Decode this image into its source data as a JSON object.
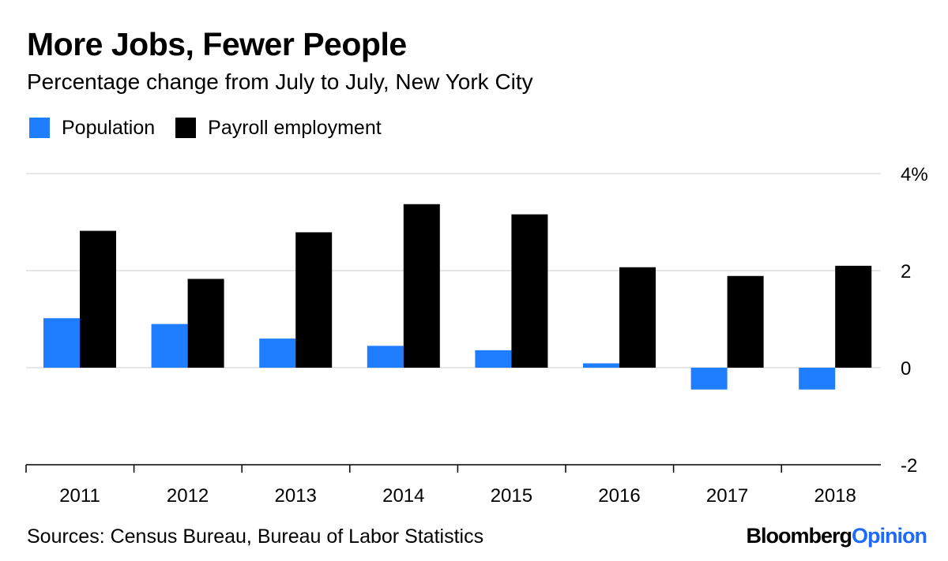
{
  "title": "More Jobs, Fewer People",
  "subtitle": "Percentage change from July to July, New York City",
  "source": "Sources: Census Bureau, Bureau of Labor Statistics",
  "brand": {
    "primary": "Bloomberg",
    "secondary": "Opinion",
    "primary_color": "#000000",
    "secondary_color": "#1f69ff"
  },
  "chart_data": {
    "type": "bar",
    "title": "More Jobs, Fewer People",
    "subtitle": "Percentage change from July to July, New York City",
    "xlabel": "",
    "ylabel": "",
    "categories": [
      "2011",
      "2012",
      "2013",
      "2014",
      "2015",
      "2016",
      "2017",
      "2018"
    ],
    "series": [
      {
        "name": "Population",
        "color": "#1f7dff",
        "values": [
          1.02,
          0.9,
          0.6,
          0.45,
          0.36,
          0.09,
          -0.45,
          -0.45
        ]
      },
      {
        "name": "Payroll employment",
        "color": "#000000",
        "values": [
          2.82,
          1.83,
          2.79,
          3.37,
          3.16,
          2.07,
          1.89,
          2.1
        ]
      }
    ],
    "ylim": [
      -2,
      4
    ],
    "yticks": [
      -2,
      0,
      2,
      4
    ],
    "ytick_labels": [
      "-2",
      "0",
      "2",
      "4%"
    ],
    "legend_position": "top-left",
    "grid": true
  }
}
